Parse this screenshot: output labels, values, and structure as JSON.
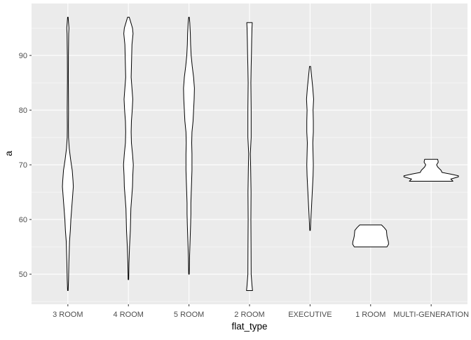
{
  "chart_data": {
    "type": "violin",
    "xlabel": "flat_type",
    "ylabel": "a",
    "categories": [
      "3 ROOM",
      "4 ROOM",
      "5 ROOM",
      "2 ROOM",
      "EXECUTIVE",
      "1 ROOM",
      "MULTI-GENERATION"
    ],
    "ylim": [
      44.5,
      99.5
    ],
    "y_ticks": [
      50,
      60,
      70,
      80,
      90
    ],
    "grid": true,
    "legend": "none",
    "colors": {
      "panel_background": "#ebebeb",
      "grid_major": "#ffffff",
      "violin_fill": "#ffffff",
      "violin_outline": "#000000",
      "tick_label": "#4d4d4d"
    },
    "violins": [
      {
        "category": "3 ROOM",
        "profile": [
          [
            47,
            0.05
          ],
          [
            49,
            0.12
          ],
          [
            52,
            0.18
          ],
          [
            56,
            0.3
          ],
          [
            58,
            0.45
          ],
          [
            60,
            0.55
          ],
          [
            62,
            0.7
          ],
          [
            64,
            0.85
          ],
          [
            66,
            1.0
          ],
          [
            67,
            0.95
          ],
          [
            69,
            0.8
          ],
          [
            71,
            0.5
          ],
          [
            73,
            0.25
          ],
          [
            75,
            0.12
          ],
          [
            77,
            0.1
          ],
          [
            80,
            0.12
          ],
          [
            83,
            0.1
          ],
          [
            86,
            0.08
          ],
          [
            90,
            0.1
          ],
          [
            94,
            0.15
          ],
          [
            95,
            0.2
          ],
          [
            96,
            0.12
          ],
          [
            97,
            0.05
          ]
        ]
      },
      {
        "category": "4 ROOM",
        "profile": [
          [
            49,
            0.05
          ],
          [
            52,
            0.1
          ],
          [
            55,
            0.2
          ],
          [
            58,
            0.35
          ],
          [
            62,
            0.45
          ],
          [
            64,
            0.6
          ],
          [
            66,
            0.75
          ],
          [
            68,
            0.8
          ],
          [
            70,
            0.9
          ],
          [
            72,
            0.75
          ],
          [
            74,
            0.55
          ],
          [
            76,
            0.5
          ],
          [
            78,
            0.55
          ],
          [
            80,
            0.7
          ],
          [
            82,
            0.8
          ],
          [
            84,
            0.65
          ],
          [
            86,
            0.5
          ],
          [
            88,
            0.55
          ],
          [
            90,
            0.6
          ],
          [
            92,
            0.65
          ],
          [
            94,
            0.85
          ],
          [
            95,
            0.75
          ],
          [
            96,
            0.45
          ],
          [
            97,
            0.15
          ]
        ]
      },
      {
        "category": "5 ROOM",
        "profile": [
          [
            50,
            0.05
          ],
          [
            53,
            0.1
          ],
          [
            56,
            0.2
          ],
          [
            59,
            0.3
          ],
          [
            61,
            0.35
          ],
          [
            63,
            0.35
          ],
          [
            66,
            0.45
          ],
          [
            69,
            0.55
          ],
          [
            72,
            0.55
          ],
          [
            74,
            0.5
          ],
          [
            76,
            0.55
          ],
          [
            78,
            0.75
          ],
          [
            80,
            0.85
          ],
          [
            82,
            0.95
          ],
          [
            84,
            1.0
          ],
          [
            86,
            0.85
          ],
          [
            88,
            0.6
          ],
          [
            90,
            0.4
          ],
          [
            92,
            0.3
          ],
          [
            94,
            0.25
          ],
          [
            96,
            0.15
          ],
          [
            97,
            0.05
          ]
        ]
      },
      {
        "category": "2 ROOM",
        "profile": [
          [
            47,
            0.55
          ],
          [
            48,
            0.45
          ],
          [
            50,
            0.3
          ],
          [
            55,
            0.28
          ],
          [
            60,
            0.25
          ],
          [
            65,
            0.28
          ],
          [
            70,
            0.2
          ],
          [
            72,
            0.15
          ],
          [
            75,
            0.3
          ],
          [
            80,
            0.3
          ],
          [
            85,
            0.25
          ],
          [
            88,
            0.3
          ],
          [
            90,
            0.35
          ],
          [
            93,
            0.4
          ],
          [
            95,
            0.45
          ],
          [
            96,
            0.5
          ]
        ]
      },
      {
        "category": "EXECUTIVE",
        "profile": [
          [
            58,
            0.05
          ],
          [
            60,
            0.15
          ],
          [
            62,
            0.25
          ],
          [
            64,
            0.35
          ],
          [
            66,
            0.45
          ],
          [
            68,
            0.55
          ],
          [
            70,
            0.6
          ],
          [
            72,
            0.55
          ],
          [
            74,
            0.5
          ],
          [
            76,
            0.6
          ],
          [
            78,
            0.6
          ],
          [
            80,
            0.55
          ],
          [
            82,
            0.65
          ],
          [
            84,
            0.5
          ],
          [
            86,
            0.3
          ],
          [
            88,
            0.1
          ]
        ]
      },
      {
        "category": "1 ROOM",
        "profile": [
          [
            55,
            3.0
          ],
          [
            55.5,
            3.3
          ],
          [
            56,
            3.25
          ],
          [
            56.5,
            3.1
          ],
          [
            57,
            3.0
          ],
          [
            58,
            2.9
          ],
          [
            58.5,
            2.5
          ],
          [
            59,
            2.0
          ]
        ]
      },
      {
        "category": "MULTI-GENERATION",
        "profile": [
          [
            67,
            4.0
          ],
          [
            67.4,
            3.6
          ],
          [
            67.8,
            5.0
          ],
          [
            68,
            5.0
          ],
          [
            68.3,
            3.6
          ],
          [
            68.6,
            2.0
          ],
          [
            69,
            1.8
          ],
          [
            69.6,
            1.2
          ],
          [
            70,
            1.0
          ],
          [
            70.5,
            1.3
          ],
          [
            71,
            1.2
          ]
        ]
      }
    ]
  }
}
